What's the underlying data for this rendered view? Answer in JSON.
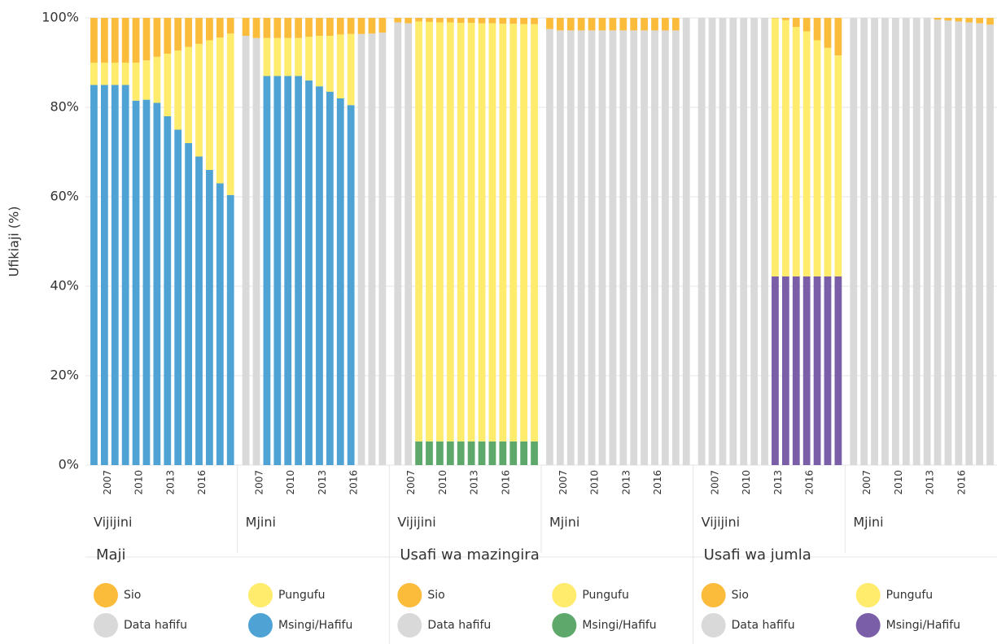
{
  "chart_data": [
    {
      "type": "bar",
      "stacked": true,
      "title": "Maji",
      "ylabel": "Ufikiaji (%)",
      "ylim": [
        0,
        100
      ],
      "yticks": [
        {
          "value": 0,
          "label": "0%"
        },
        {
          "value": 20,
          "label": "20%"
        },
        {
          "value": 40,
          "label": "40%"
        },
        {
          "value": 60,
          "label": "60%"
        },
        {
          "value": 80,
          "label": "80%"
        },
        {
          "value": 100,
          "label": "100%"
        }
      ],
      "grid": true,
      "panels": [
        {
          "subtitle": "Vijijini",
          "categories": [
            null,
            "2007",
            null,
            null,
            "2010",
            null,
            null,
            "2013",
            null,
            null,
            "2016",
            null,
            null,
            null
          ],
          "series": [
            {
              "name": "Sio",
              "color": "#fbbc3c",
              "values": [
                10,
                10,
                10,
                10,
                10,
                9.5,
                8.7,
                8,
                7.3,
                6.5,
                5.8,
                5,
                4.4,
                3.5
              ]
            },
            {
              "name": "Pungufu",
              "color": "#ffeb6c",
              "values": [
                5,
                5,
                5,
                5,
                8.5,
                8.8,
                10.3,
                14,
                17.7,
                21.5,
                25.2,
                29,
                32.6,
                36.1
              ]
            },
            {
              "name": "Data hafifu",
              "color": "#d9d9d9",
              "values": [
                null,
                null,
                null,
                null,
                null,
                null,
                null,
                null,
                null,
                null,
                null,
                null,
                null,
                null
              ]
            },
            {
              "name": "Msingi/Hafifu",
              "color": "#4ea3d4",
              "values": [
                85,
                85,
                85,
                85,
                81.5,
                81.7,
                81,
                78,
                75,
                72,
                69,
                66,
                63,
                60.4
              ]
            }
          ]
        },
        {
          "subtitle": "Mjini",
          "categories": [
            null,
            "2007",
            null,
            null,
            "2010",
            null,
            null,
            "2013",
            null,
            null,
            "2016",
            null,
            null,
            null
          ],
          "series": [
            {
              "name": "Sio",
              "color": "#fbbc3c",
              "values": [
                4,
                4.5,
                4.5,
                4.5,
                4.5,
                4.5,
                4.2,
                4,
                4,
                3.7,
                3.6,
                3.6,
                3.5,
                3.3
              ]
            },
            {
              "name": "Pungufu",
              "color": "#ffeb6c",
              "values": [
                null,
                null,
                8.5,
                8.5,
                8.5,
                8.5,
                9.8,
                11.3,
                12.5,
                14.3,
                15.9,
                null,
                null,
                null
              ]
            },
            {
              "name": "Data hafifu",
              "color": "#d9d9d9",
              "values": [
                96,
                95.5,
                null,
                null,
                null,
                null,
                null,
                null,
                null,
                null,
                null,
                96.4,
                96.5,
                96.7
              ]
            },
            {
              "name": "Msingi/Hafifu",
              "color": "#4ea3d4",
              "values": [
                null,
                null,
                87,
                87,
                87,
                87,
                86,
                84.7,
                83.5,
                82,
                80.5,
                null,
                null,
                null
              ]
            }
          ]
        }
      ]
    },
    {
      "type": "bar",
      "stacked": true,
      "title": "Usafi wa mazingira",
      "panels": [
        {
          "subtitle": "Vijijini",
          "categories": [
            null,
            "2007",
            null,
            null,
            "2010",
            null,
            null,
            "2013",
            null,
            null,
            "2016",
            null,
            null,
            null
          ],
          "series": [
            {
              "name": "Sio",
              "color": "#fbbc3c",
              "values": [
                1,
                1.2,
                0.8,
                0.9,
                1,
                1,
                1.1,
                1.1,
                1.2,
                1.2,
                1.3,
                1.3,
                1.4,
                1.4
              ]
            },
            {
              "name": "Pungufu",
              "color": "#ffeb6c",
              "values": [
                null,
                null,
                93.9,
                93.8,
                93.7,
                93.7,
                93.6,
                93.6,
                93.5,
                93.5,
                93.4,
                93.4,
                93.3,
                93.3
              ]
            },
            {
              "name": "Data hafifu",
              "color": "#d9d9d9",
              "values": [
                99,
                98.8,
                null,
                null,
                null,
                null,
                null,
                null,
                null,
                null,
                null,
                null,
                null,
                null
              ]
            },
            {
              "name": "Msingi/Hafifu",
              "color": "#5fa86b",
              "values": [
                null,
                null,
                5.3,
                5.3,
                5.3,
                5.3,
                5.3,
                5.3,
                5.3,
                5.3,
                5.3,
                5.3,
                5.3,
                5.3
              ]
            }
          ]
        },
        {
          "subtitle": "Mjini",
          "categories": [
            null,
            "2007",
            null,
            null,
            "2010",
            null,
            null,
            "2013",
            null,
            null,
            "2016",
            null,
            null,
            null
          ],
          "series": [
            {
              "name": "Sio",
              "color": "#fbbc3c",
              "values": [
                2.5,
                2.8,
                2.8,
                2.8,
                2.8,
                2.8,
                2.8,
                2.8,
                2.8,
                2.8,
                2.8,
                2.8,
                2.8,
                null
              ]
            },
            {
              "name": "Pungufu",
              "color": "#ffeb6c",
              "values": [
                null,
                null,
                null,
                null,
                null,
                null,
                null,
                null,
                null,
                null,
                null,
                null,
                null,
                null
              ]
            },
            {
              "name": "Data hafifu",
              "color": "#d9d9d9",
              "values": [
                97.5,
                97.2,
                97.2,
                97.2,
                97.2,
                97.2,
                97.2,
                97.2,
                97.2,
                97.2,
                97.2,
                97.2,
                97.2,
                100
              ]
            },
            {
              "name": "Msingi/Hafifu",
              "color": "#5fa86b",
              "values": [
                null,
                null,
                null,
                null,
                null,
                null,
                null,
                null,
                null,
                null,
                null,
                null,
                null,
                null
              ]
            }
          ]
        }
      ]
    },
    {
      "type": "bar",
      "stacked": true,
      "title": "Usafi wa jumla",
      "panels": [
        {
          "subtitle": "Vijijini",
          "categories": [
            null,
            "2007",
            null,
            null,
            "2010",
            null,
            null,
            "2013",
            null,
            null,
            "2016",
            null,
            null,
            null
          ],
          "series": [
            {
              "name": "Sio",
              "color": "#fbbc3c",
              "values": [
                null,
                null,
                null,
                null,
                null,
                null,
                null,
                0.1,
                0.5,
                2,
                3,
                5,
                6.7,
                8.4
              ]
            },
            {
              "name": "Pungufu",
              "color": "#ffeb6c",
              "values": [
                null,
                null,
                null,
                null,
                null,
                null,
                null,
                57.7,
                57.3,
                55.8,
                54.8,
                52.8,
                51.1,
                49.4
              ]
            },
            {
              "name": "Data hafifu",
              "color": "#d9d9d9",
              "values": [
                100,
                100,
                100,
                100,
                100,
                100,
                100,
                null,
                null,
                null,
                null,
                null,
                null,
                null
              ]
            },
            {
              "name": "Msingi/Hafifu",
              "color": "#7b5ea8",
              "values": [
                null,
                null,
                null,
                null,
                null,
                null,
                null,
                42.2,
                42.2,
                42.2,
                42.2,
                42.2,
                42.2,
                42.2
              ]
            }
          ]
        },
        {
          "subtitle": "Mjini",
          "categories": [
            null,
            "2007",
            null,
            null,
            "2010",
            null,
            null,
            "2013",
            null,
            null,
            "2016",
            null,
            null,
            null
          ],
          "series": [
            {
              "name": "Sio",
              "color": "#fbbc3c",
              "values": [
                null,
                null,
                null,
                null,
                null,
                null,
                null,
                null,
                0.4,
                0.6,
                0.8,
                1,
                1.2,
                1.5
              ]
            },
            {
              "name": "Pungufu",
              "color": "#ffeb6c",
              "values": [
                null,
                null,
                null,
                null,
                null,
                null,
                null,
                null,
                null,
                null,
                null,
                null,
                null,
                null
              ]
            },
            {
              "name": "Data hafifu",
              "color": "#d9d9d9",
              "values": [
                100,
                100,
                100,
                100,
                100,
                100,
                100,
                100,
                99.6,
                99.4,
                99.2,
                99,
                98.8,
                98.5
              ]
            },
            {
              "name": "Msingi/Hafifu",
              "color": "#7b5ea8",
              "values": [
                null,
                null,
                null,
                null,
                null,
                null,
                null,
                null,
                null,
                null,
                null,
                null,
                null,
                null
              ]
            }
          ]
        }
      ]
    }
  ]
}
